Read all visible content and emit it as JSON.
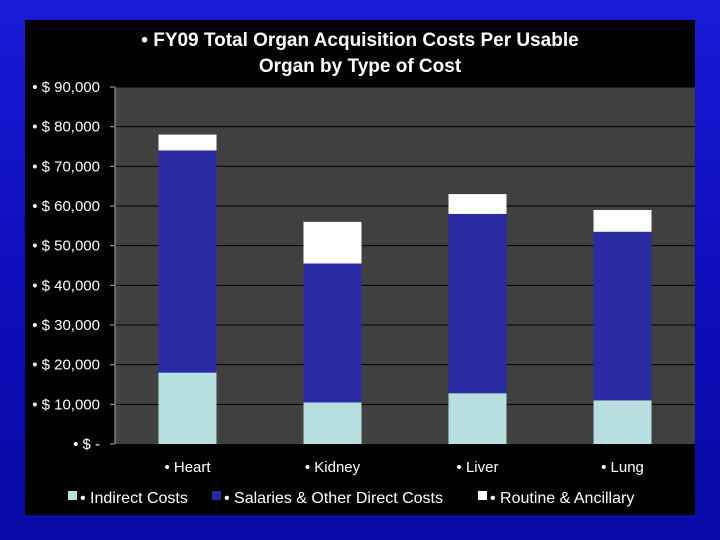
{
  "chart_data": {
    "type": "bar",
    "stacked": true,
    "title_lines": [
      "• FY09 Total Organ Acquisition Costs Per Usable",
      "Organ by Type of Cost"
    ],
    "categories": [
      "• Heart",
      "• Kidney",
      "• Liver",
      "• Lung"
    ],
    "series": [
      {
        "name": "• Indirect Costs",
        "color": "#b8dfe0",
        "values": [
          18000,
          10500,
          12800,
          11000
        ]
      },
      {
        "name": "• Salaries & Other Direct Costs",
        "color": "#2a2aa2",
        "values": [
          56000,
          35000,
          45200,
          42500
        ]
      },
      {
        "name": "• Routine & Ancillary",
        "color": "#ffffff",
        "values": [
          4000,
          10500,
          5000,
          5500
        ]
      }
    ],
    "ylim": [
      0,
      90000
    ],
    "y_ticks": [
      0,
      10000,
      20000,
      30000,
      40000,
      50000,
      60000,
      70000,
      80000,
      90000
    ],
    "y_tick_labels": [
      "• $ -",
      "• $ 10,000",
      "• $ 20,000",
      "• $ 30,000",
      "• $ 40,000",
      "• $ 50,000",
      "• $ 60,000",
      "• $ 70,000",
      "• $ 80,000",
      "• $ 90,000"
    ],
    "xlabel": "",
    "ylabel": "",
    "grid": true,
    "legend_position": "bottom"
  },
  "colors": {
    "plot_background": "#404040",
    "gridline": "#000000"
  }
}
